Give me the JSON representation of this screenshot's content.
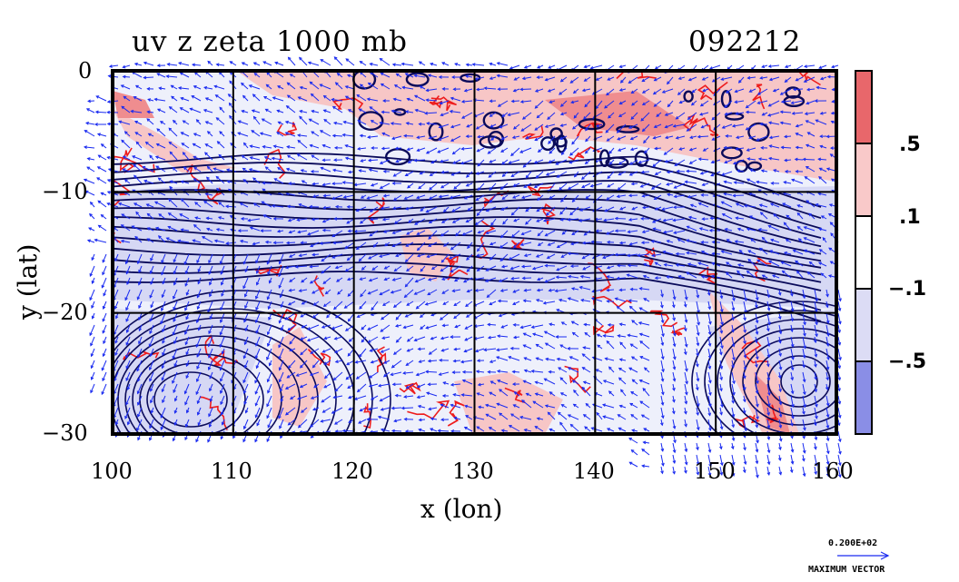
{
  "title": "uv z zeta 1000 mb",
  "date_code": "092212",
  "colorbar": {
    "labels": [
      ".5",
      ".1",
      "−.1",
      "−.5"
    ],
    "colors": [
      "#e8676b",
      "#f9c9c9",
      "#ffffff",
      "#dcdcf5",
      "#8a8ee6"
    ]
  },
  "max_vector": {
    "value": "0.200E+02",
    "label": "MAXIMUM VECTOR"
  },
  "colors": {
    "positive_contour": "#ee1c1c",
    "wind_vectors": "#1a2bf0",
    "height_contours": "#0a0a5a",
    "frame": "#000000"
  },
  "chart_data": {
    "type": "contour",
    "xlabel": "x (lon)",
    "ylabel": "y (lat)",
    "xlim": [
      100,
      160
    ],
    "ylim": [
      -30,
      0
    ],
    "x_ticks": [
      100,
      110,
      120,
      130,
      140,
      150,
      160
    ],
    "y_ticks": [
      0,
      -10,
      -20,
      -30
    ],
    "x_tick_labels": [
      "100",
      "110",
      "120",
      "130",
      "140",
      "150",
      "160"
    ],
    "y_tick_labels": [
      "0",
      "−10",
      "−20",
      "−30"
    ],
    "grid": true,
    "fields": [
      "uv wind vectors",
      "geopotential height z contours",
      "relative vorticity zeta shaded"
    ],
    "shading_levels": [
      -0.5,
      -0.1,
      0.1,
      0.5
    ]
  }
}
